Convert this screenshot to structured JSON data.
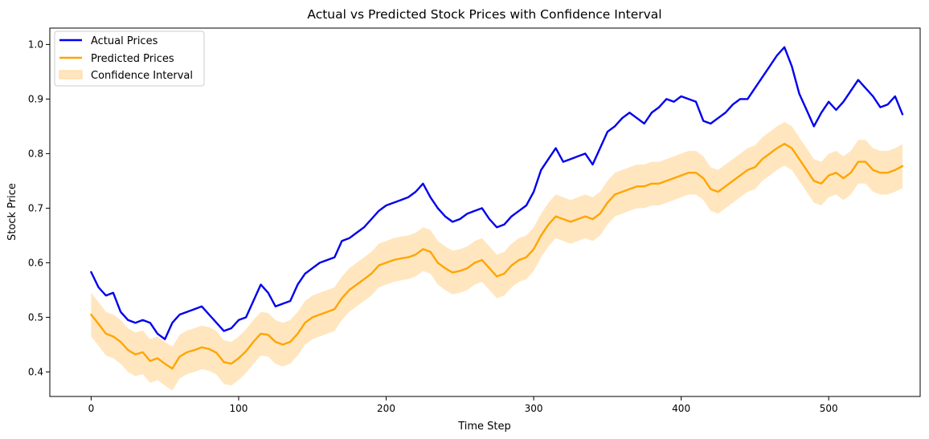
{
  "chart_data": {
    "type": "line",
    "title": "Actual vs Predicted Stock Prices with Confidence Interval",
    "xlabel": "Time Step",
    "ylabel": "Stock Price",
    "xlim": [
      -28,
      562
    ],
    "ylim": [
      0.355,
      1.03
    ],
    "grid": false,
    "legend_position": "top-left",
    "x_ticks": [
      0,
      100,
      200,
      300,
      400,
      500
    ],
    "y_ticks": [
      0.4,
      0.5,
      0.6,
      0.7,
      0.8,
      0.9,
      1.0
    ],
    "y_tick_labels": [
      "0.4",
      "0.5",
      "0.6",
      "0.7",
      "0.8",
      "0.9",
      "1.0"
    ],
    "series": [
      {
        "name": "Actual Prices",
        "color": "#0000ee",
        "x": [
          0,
          5,
          10,
          15,
          20,
          25,
          30,
          35,
          40,
          45,
          50,
          55,
          60,
          65,
          70,
          75,
          80,
          85,
          90,
          95,
          100,
          105,
          110,
          115,
          120,
          125,
          130,
          135,
          140,
          145,
          150,
          155,
          160,
          165,
          170,
          175,
          180,
          185,
          190,
          195,
          200,
          205,
          210,
          215,
          220,
          225,
          230,
          235,
          240,
          245,
          250,
          255,
          260,
          265,
          270,
          275,
          280,
          285,
          290,
          295,
          300,
          305,
          310,
          315,
          320,
          325,
          330,
          335,
          340,
          345,
          350,
          355,
          360,
          365,
          370,
          375,
          380,
          385,
          390,
          395,
          400,
          405,
          410,
          415,
          420,
          425,
          430,
          435,
          440,
          445,
          450,
          455,
          460,
          465,
          470,
          475,
          480,
          485,
          490,
          495,
          500,
          505,
          510,
          515,
          520,
          525,
          530,
          535,
          540,
          545,
          550
        ],
        "values": [
          0.583,
          0.555,
          0.54,
          0.545,
          0.51,
          0.495,
          0.49,
          0.495,
          0.49,
          0.47,
          0.46,
          0.49,
          0.505,
          0.51,
          0.515,
          0.52,
          0.505,
          0.49,
          0.475,
          0.48,
          0.495,
          0.5,
          0.53,
          0.56,
          0.545,
          0.52,
          0.525,
          0.53,
          0.56,
          0.58,
          0.59,
          0.6,
          0.605,
          0.61,
          0.64,
          0.645,
          0.655,
          0.665,
          0.68,
          0.695,
          0.705,
          0.71,
          0.715,
          0.72,
          0.73,
          0.745,
          0.72,
          0.7,
          0.685,
          0.675,
          0.68,
          0.69,
          0.695,
          0.7,
          0.68,
          0.665,
          0.67,
          0.685,
          0.695,
          0.705,
          0.73,
          0.77,
          0.79,
          0.81,
          0.785,
          0.79,
          0.795,
          0.8,
          0.78,
          0.81,
          0.84,
          0.85,
          0.865,
          0.875,
          0.865,
          0.855,
          0.875,
          0.885,
          0.9,
          0.895,
          0.905,
          0.9,
          0.895,
          0.86,
          0.855,
          0.865,
          0.875,
          0.89,
          0.9,
          0.9,
          0.92,
          0.94,
          0.96,
          0.98,
          0.995,
          0.96,
          0.91,
          0.88,
          0.85,
          0.875,
          0.895,
          0.88,
          0.895,
          0.915,
          0.935,
          0.92,
          0.905,
          0.885,
          0.89,
          0.905,
          0.872
        ]
      },
      {
        "name": "Predicted Prices",
        "color": "#ffa500",
        "x": [
          0,
          5,
          10,
          15,
          20,
          25,
          30,
          35,
          40,
          45,
          50,
          55,
          60,
          65,
          70,
          75,
          80,
          85,
          90,
          95,
          100,
          105,
          110,
          115,
          120,
          125,
          130,
          135,
          140,
          145,
          150,
          155,
          160,
          165,
          170,
          175,
          180,
          185,
          190,
          195,
          200,
          205,
          210,
          215,
          220,
          225,
          230,
          235,
          240,
          245,
          250,
          255,
          260,
          265,
          270,
          275,
          280,
          285,
          290,
          295,
          300,
          305,
          310,
          315,
          320,
          325,
          330,
          335,
          340,
          345,
          350,
          355,
          360,
          365,
          370,
          375,
          380,
          385,
          390,
          395,
          400,
          405,
          410,
          415,
          420,
          425,
          430,
          435,
          440,
          445,
          450,
          455,
          460,
          465,
          470,
          475,
          480,
          485,
          490,
          495,
          500,
          505,
          510,
          515,
          520,
          525,
          530,
          535,
          540,
          545,
          550
        ],
        "values": [
          0.505,
          0.488,
          0.47,
          0.465,
          0.455,
          0.44,
          0.432,
          0.436,
          0.42,
          0.425,
          0.415,
          0.406,
          0.428,
          0.436,
          0.44,
          0.445,
          0.442,
          0.435,
          0.418,
          0.415,
          0.425,
          0.438,
          0.455,
          0.47,
          0.468,
          0.455,
          0.45,
          0.455,
          0.47,
          0.49,
          0.5,
          0.505,
          0.51,
          0.515,
          0.535,
          0.55,
          0.56,
          0.57,
          0.58,
          0.595,
          0.6,
          0.605,
          0.608,
          0.61,
          0.615,
          0.625,
          0.62,
          0.6,
          0.59,
          0.582,
          0.585,
          0.59,
          0.6,
          0.605,
          0.59,
          0.575,
          0.58,
          0.595,
          0.605,
          0.61,
          0.625,
          0.65,
          0.67,
          0.685,
          0.68,
          0.675,
          0.68,
          0.685,
          0.68,
          0.69,
          0.71,
          0.725,
          0.73,
          0.735,
          0.74,
          0.74,
          0.745,
          0.745,
          0.75,
          0.755,
          0.76,
          0.765,
          0.765,
          0.755,
          0.735,
          0.73,
          0.74,
          0.75,
          0.76,
          0.77,
          0.775,
          0.79,
          0.8,
          0.81,
          0.818,
          0.81,
          0.79,
          0.77,
          0.75,
          0.745,
          0.76,
          0.765,
          0.755,
          0.765,
          0.785,
          0.785,
          0.77,
          0.765,
          0.765,
          0.77,
          0.777
        ]
      }
    ],
    "confidence_interval": {
      "name": "Confidence Interval",
      "color": "#ffe6bf",
      "half_width": 0.04
    }
  }
}
